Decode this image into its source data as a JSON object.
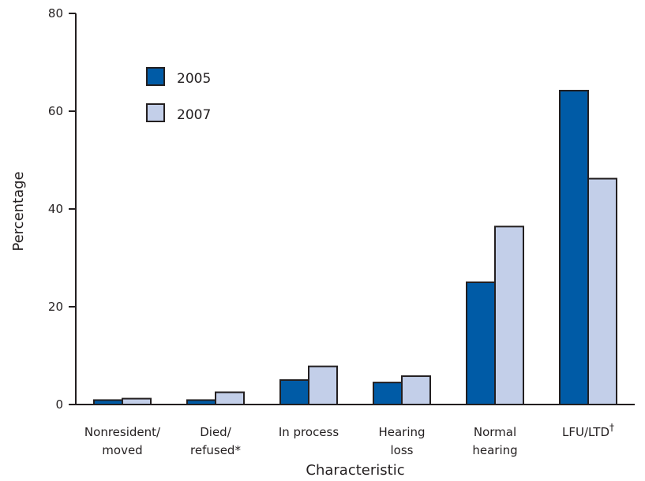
{
  "chart_data": {
    "type": "bar",
    "xlabel": "Characteristic",
    "ylabel": "Percentage",
    "ylim": [
      0,
      80
    ],
    "yticks": [
      0,
      20,
      40,
      60,
      80
    ],
    "grid": false,
    "legend_position": "top-left",
    "categories": [
      {
        "lines": [
          "Nonresident/",
          "moved"
        ]
      },
      {
        "lines": [
          "Died/",
          "refused*"
        ]
      },
      {
        "lines": [
          "In process"
        ]
      },
      {
        "lines": [
          "Hearing",
          "loss"
        ]
      },
      {
        "lines": [
          "Normal",
          "hearing"
        ]
      },
      {
        "lines": [
          "LFU/LTD"
        ],
        "superscript": "†"
      }
    ],
    "series": [
      {
        "name": "2005",
        "color": "#005ba6",
        "values": [
          0.9,
          0.9,
          5.0,
          4.5,
          25.0,
          64.2
        ]
      },
      {
        "name": "2007",
        "color": "#c3cfe9",
        "values": [
          1.2,
          2.5,
          7.8,
          5.8,
          36.4,
          46.2
        ]
      }
    ]
  }
}
